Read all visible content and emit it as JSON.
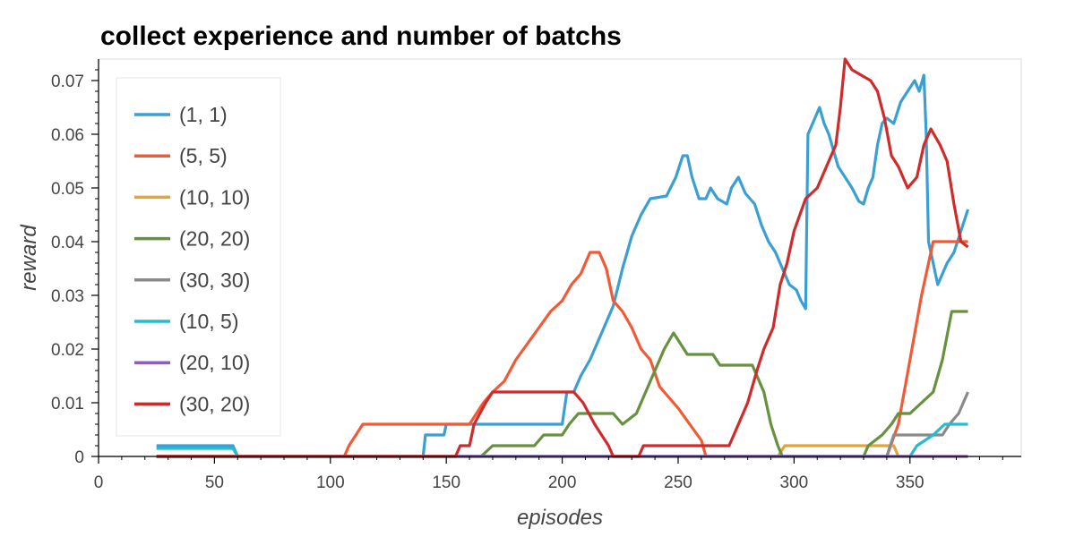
{
  "chart_data": {
    "type": "line",
    "title": "collect experience and number of batchs",
    "xlabel": "episodes",
    "ylabel": "reward",
    "xlim": [
      0,
      398
    ],
    "ylim": [
      0,
      0.074
    ],
    "xticks": [
      0,
      50,
      100,
      150,
      200,
      250,
      300,
      350
    ],
    "yticks": [
      0,
      0.01,
      0.02,
      0.03,
      0.04,
      0.05,
      0.06,
      0.07
    ],
    "grid": false,
    "legend_position": "top-left",
    "series": [
      {
        "name": "(1, 1)",
        "color": "#3a9fd3",
        "points": [
          [
            25,
            0.002
          ],
          [
            58,
            0.002
          ],
          [
            60,
            0
          ],
          [
            140,
            0
          ],
          [
            141,
            0.004
          ],
          [
            149,
            0.004
          ],
          [
            150,
            0.006
          ],
          [
            200,
            0.006
          ],
          [
            202,
            0.012
          ],
          [
            205,
            0.012
          ],
          [
            208,
            0.015
          ],
          [
            212,
            0.018
          ],
          [
            218,
            0.024
          ],
          [
            222,
            0.028
          ],
          [
            226,
            0.035
          ],
          [
            230,
            0.041
          ],
          [
            234,
            0.045
          ],
          [
            238,
            0.048
          ],
          [
            245,
            0.0485
          ],
          [
            249,
            0.052
          ],
          [
            252,
            0.056
          ],
          [
            254,
            0.056
          ],
          [
            256,
            0.052
          ],
          [
            259,
            0.048
          ],
          [
            262,
            0.048
          ],
          [
            264,
            0.05
          ],
          [
            267,
            0.048
          ],
          [
            271,
            0.047
          ],
          [
            273,
            0.05
          ],
          [
            276,
            0.052
          ],
          [
            279,
            0.049
          ],
          [
            283,
            0.047
          ],
          [
            286,
            0.043
          ],
          [
            289,
            0.04
          ],
          [
            292,
            0.038
          ],
          [
            295,
            0.035
          ],
          [
            298,
            0.032
          ],
          [
            301,
            0.031
          ],
          [
            303,
            0.029
          ],
          [
            305,
            0.0275
          ],
          [
            306,
            0.06
          ],
          [
            309,
            0.063
          ],
          [
            311,
            0.065
          ],
          [
            313,
            0.062
          ],
          [
            315,
            0.06
          ],
          [
            317,
            0.057
          ],
          [
            319,
            0.054
          ],
          [
            322,
            0.052
          ],
          [
            325,
            0.05
          ],
          [
            328,
            0.0475
          ],
          [
            330,
            0.047
          ],
          [
            332,
            0.05
          ],
          [
            334,
            0.052
          ],
          [
            336,
            0.058
          ],
          [
            338,
            0.062
          ],
          [
            340,
            0.063
          ],
          [
            343,
            0.062
          ],
          [
            346,
            0.066
          ],
          [
            349,
            0.068
          ],
          [
            352,
            0.07
          ],
          [
            354,
            0.068
          ],
          [
            356,
            0.071
          ],
          [
            357,
            0.06
          ],
          [
            358,
            0.04
          ],
          [
            360,
            0.036
          ],
          [
            362,
            0.032
          ],
          [
            364,
            0.034
          ],
          [
            366,
            0.036
          ],
          [
            369,
            0.038
          ],
          [
            372,
            0.042
          ],
          [
            375,
            0.046
          ]
        ]
      },
      {
        "name": "(5, 5)",
        "color": "#f15a35",
        "points": [
          [
            25,
            0
          ],
          [
            106,
            0
          ],
          [
            108,
            0.002
          ],
          [
            111,
            0.004
          ],
          [
            114,
            0.006
          ],
          [
            160,
            0.006
          ],
          [
            163,
            0.008
          ],
          [
            166,
            0.01
          ],
          [
            170,
            0.012
          ],
          [
            175,
            0.014
          ],
          [
            180,
            0.018
          ],
          [
            185,
            0.021
          ],
          [
            190,
            0.024
          ],
          [
            195,
            0.027
          ],
          [
            200,
            0.029
          ],
          [
            204,
            0.032
          ],
          [
            208,
            0.034
          ],
          [
            212,
            0.038
          ],
          [
            216,
            0.038
          ],
          [
            219,
            0.035
          ],
          [
            222,
            0.029
          ],
          [
            226,
            0.027
          ],
          [
            230,
            0.024
          ],
          [
            234,
            0.02
          ],
          [
            238,
            0.018
          ],
          [
            242,
            0.013
          ],
          [
            246,
            0.011
          ],
          [
            250,
            0.009
          ],
          [
            255,
            0.006
          ],
          [
            260,
            0.003
          ],
          [
            262,
            0
          ],
          [
            340,
            0
          ],
          [
            345,
            0.006
          ],
          [
            350,
            0.018
          ],
          [
            355,
            0.03
          ],
          [
            360,
            0.04
          ],
          [
            375,
            0.04
          ]
        ]
      },
      {
        "name": "(10, 10)",
        "color": "#e3a53a",
        "points": [
          [
            25,
            0
          ],
          [
            293,
            0
          ],
          [
            296,
            0.002
          ],
          [
            343,
            0.002
          ],
          [
            345,
            0
          ],
          [
            375,
            0
          ]
        ]
      },
      {
        "name": "(20, 20)",
        "color": "#66913e",
        "points": [
          [
            25,
            0
          ],
          [
            165,
            0
          ],
          [
            170,
            0.002
          ],
          [
            188,
            0.002
          ],
          [
            192,
            0.004
          ],
          [
            200,
            0.004
          ],
          [
            203,
            0.006
          ],
          [
            207,
            0.008
          ],
          [
            222,
            0.008
          ],
          [
            226,
            0.006
          ],
          [
            232,
            0.008
          ],
          [
            238,
            0.014
          ],
          [
            244,
            0.02
          ],
          [
            248,
            0.023
          ],
          [
            251,
            0.021
          ],
          [
            254,
            0.019
          ],
          [
            265,
            0.019
          ],
          [
            268,
            0.017
          ],
          [
            282,
            0.017
          ],
          [
            284,
            0.015
          ],
          [
            287,
            0.012
          ],
          [
            290,
            0.006
          ],
          [
            293,
            0.002
          ],
          [
            295,
            0
          ],
          [
            330,
            0
          ],
          [
            332,
            0.002
          ],
          [
            338,
            0.004
          ],
          [
            342,
            0.006
          ],
          [
            345,
            0.008
          ],
          [
            350,
            0.008
          ],
          [
            355,
            0.01
          ],
          [
            360,
            0.012
          ],
          [
            364,
            0.018
          ],
          [
            368,
            0.027
          ],
          [
            375,
            0.027
          ]
        ]
      },
      {
        "name": "(30, 30)",
        "color": "#8a8a8a",
        "points": [
          [
            25,
            0
          ],
          [
            340,
            0
          ],
          [
            343,
            0.004
          ],
          [
            364,
            0.004
          ],
          [
            367,
            0.006
          ],
          [
            371,
            0.008
          ],
          [
            375,
            0.012
          ]
        ]
      },
      {
        "name": "(10, 5)",
        "color": "#24bccf",
        "points": [
          [
            25,
            0.0015
          ],
          [
            58,
            0.0015
          ],
          [
            60,
            0
          ],
          [
            350,
            0
          ],
          [
            353,
            0.002
          ],
          [
            360,
            0.004
          ],
          [
            365,
            0.006
          ],
          [
            375,
            0.006
          ]
        ]
      },
      {
        "name": "(20, 10)",
        "color": "#8a5fbf",
        "points": [
          [
            25,
            0
          ],
          [
            375,
            0
          ]
        ]
      },
      {
        "name": "(30, 20)",
        "color": "#d02b2b",
        "points": [
          [
            25,
            0
          ],
          [
            154,
            0
          ],
          [
            156,
            0.002
          ],
          [
            160,
            0.002
          ],
          [
            162,
            0.006
          ],
          [
            167,
            0.01
          ],
          [
            170,
            0.012
          ],
          [
            205,
            0.012
          ],
          [
            209,
            0.01
          ],
          [
            214,
            0.006
          ],
          [
            220,
            0.002
          ],
          [
            222,
            0
          ],
          [
            233,
            0
          ],
          [
            235,
            0.002
          ],
          [
            272,
            0.002
          ],
          [
            276,
            0.006
          ],
          [
            280,
            0.01
          ],
          [
            284,
            0.016
          ],
          [
            287,
            0.02
          ],
          [
            291,
            0.024
          ],
          [
            294,
            0.032
          ],
          [
            297,
            0.036
          ],
          [
            300,
            0.042
          ],
          [
            305,
            0.048
          ],
          [
            310,
            0.05
          ],
          [
            314,
            0.054
          ],
          [
            318,
            0.058
          ],
          [
            320,
            0.065
          ],
          [
            322,
            0.074
          ],
          [
            325,
            0.072
          ],
          [
            329,
            0.071
          ],
          [
            333,
            0.07
          ],
          [
            336,
            0.068
          ],
          [
            339,
            0.063
          ],
          [
            342,
            0.056
          ],
          [
            345,
            0.054
          ],
          [
            349,
            0.05
          ],
          [
            353,
            0.052
          ],
          [
            356,
            0.058
          ],
          [
            359,
            0.061
          ],
          [
            363,
            0.058
          ],
          [
            366,
            0.055
          ],
          [
            369,
            0.047
          ],
          [
            372,
            0.04
          ],
          [
            375,
            0.039
          ]
        ]
      }
    ]
  }
}
